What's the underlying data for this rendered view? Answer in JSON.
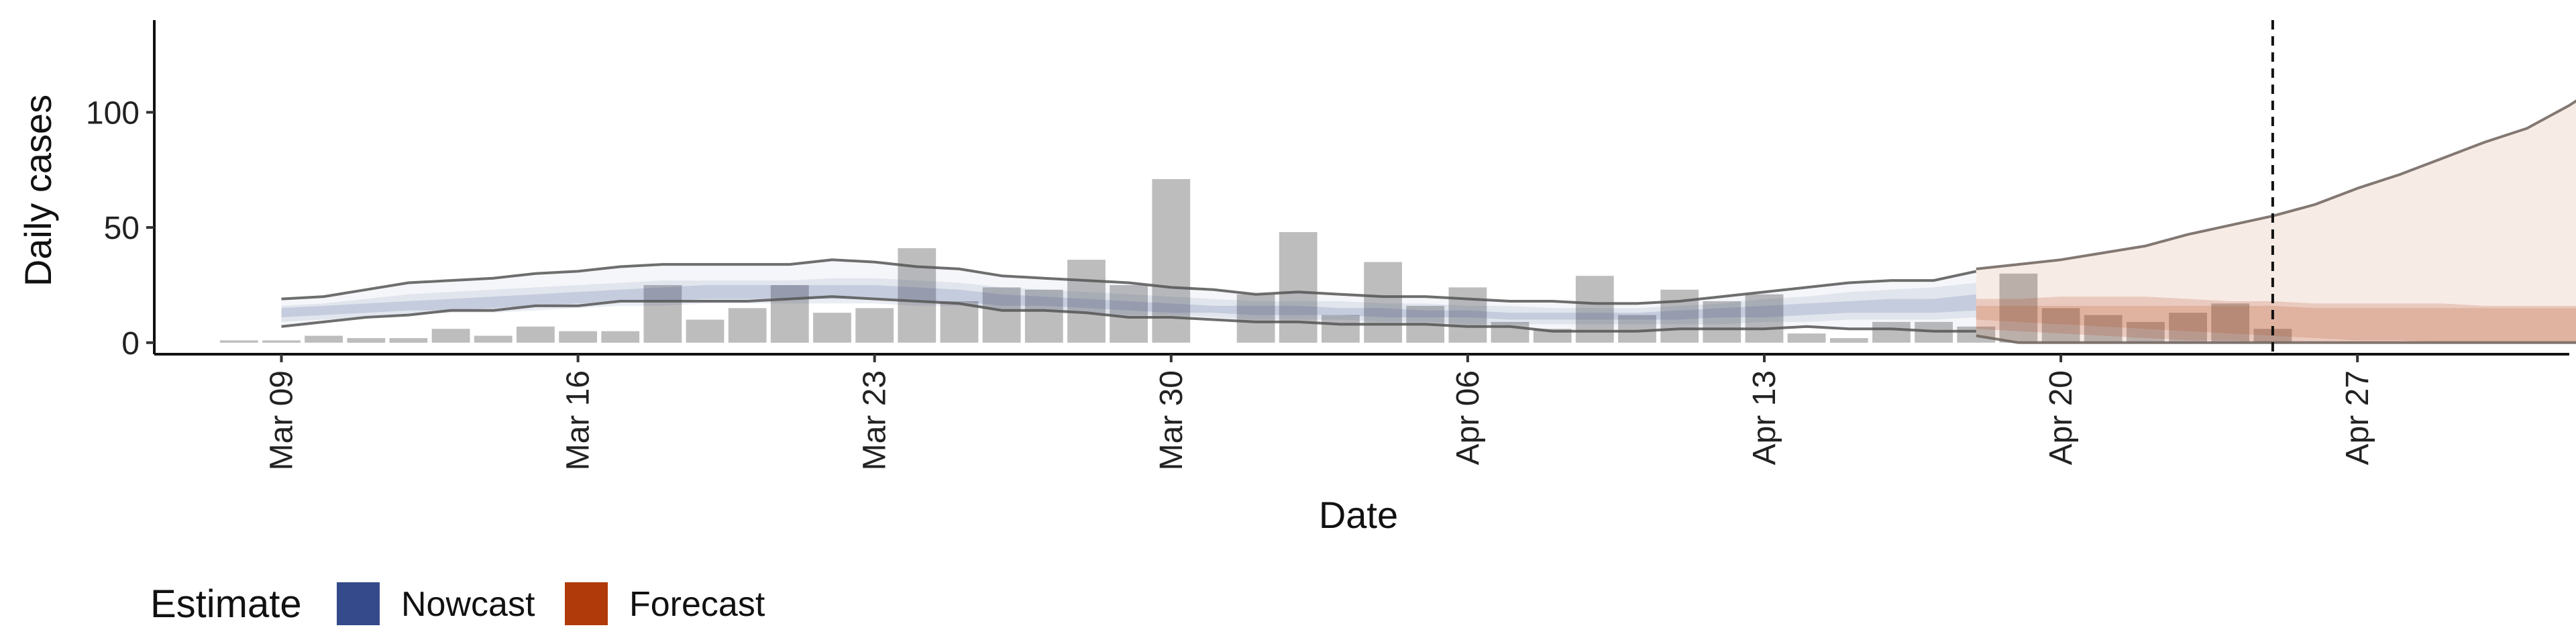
{
  "chart_data": {
    "type": "bar",
    "xlabel": "Date",
    "ylabel": "Daily cases",
    "x_domain": [
      "2020-03-06",
      "2020-05-02"
    ],
    "ylim": [
      -5,
      140
    ],
    "x_ticks": [
      {
        "date": "2020-03-09",
        "label": "Mar 09"
      },
      {
        "date": "2020-03-16",
        "label": "Mar 16"
      },
      {
        "date": "2020-03-23",
        "label": "Mar 23"
      },
      {
        "date": "2020-03-30",
        "label": "Mar 30"
      },
      {
        "date": "2020-04-06",
        "label": "Apr 06"
      },
      {
        "date": "2020-04-13",
        "label": "Apr 13"
      },
      {
        "date": "2020-04-20",
        "label": "Apr 20"
      },
      {
        "date": "2020-04-27",
        "label": "Apr 27"
      }
    ],
    "y_ticks": [
      0,
      50,
      100
    ],
    "forecast_date": "2020-04-25",
    "legend": {
      "title": "Estimate",
      "placement": "bottom-left",
      "items": [
        {
          "label": "Nowcast",
          "color": "#354A8A"
        },
        {
          "label": "Forecast",
          "color": "#B03A09"
        }
      ]
    },
    "colors": {
      "bars": "#BDBDBD",
      "nowcast": "#354A8A",
      "forecast": "#B03A09",
      "bound_line": "#555555"
    },
    "observed_cases": {
      "start_date": "2020-03-08",
      "values": [
        1,
        1,
        3,
        2,
        2,
        6,
        3,
        7,
        5,
        5,
        25,
        10,
        15,
        25,
        13,
        15,
        41,
        18,
        24,
        23,
        36,
        25,
        71,
        0,
        21,
        48,
        12,
        35,
        16,
        24,
        9,
        6,
        29,
        12,
        23,
        18,
        21,
        4,
        2,
        9,
        9,
        7,
        30,
        15,
        12,
        9,
        13,
        17,
        6
      ]
    },
    "series": [
      {
        "name": "Nowcast",
        "start_date": "2020-03-09",
        "upper": [
          19,
          20,
          23,
          26,
          27,
          28,
          30,
          31,
          33,
          34,
          34,
          34,
          34,
          36,
          35,
          33,
          32,
          29,
          28,
          27,
          26,
          24,
          23,
          21,
          22,
          21,
          20,
          20,
          19,
          18,
          18,
          17,
          17,
          18,
          20,
          22,
          24,
          26,
          27,
          27,
          31
        ],
        "outer_upper": [
          16,
          17,
          19,
          21,
          22,
          23,
          24,
          25,
          26,
          27,
          27,
          27,
          27,
          28,
          28,
          27,
          26,
          24,
          23,
          22,
          21,
          20,
          19,
          18,
          18,
          18,
          17,
          17,
          16,
          16,
          15,
          15,
          15,
          16,
          17,
          19,
          20,
          22,
          23,
          24,
          26
        ],
        "inner_upper": [
          15,
          16,
          17,
          18,
          19,
          20,
          21,
          22,
          23,
          24,
          25,
          25,
          25,
          25,
          25,
          24,
          23,
          21,
          20,
          19,
          18,
          17,
          16,
          16,
          16,
          15,
          15,
          14,
          14,
          13,
          13,
          13,
          13,
          14,
          15,
          16,
          17,
          18,
          19,
          19,
          21
        ],
        "median": [
          13,
          14,
          15,
          16,
          17,
          17,
          18,
          19,
          20,
          21,
          21,
          21,
          22,
          22,
          22,
          21,
          20,
          19,
          18,
          17,
          16,
          15,
          15,
          14,
          14,
          14,
          13,
          13,
          12,
          12,
          12,
          12,
          12,
          12,
          13,
          14,
          15,
          15,
          16,
          16,
          18
        ],
        "inner_lower": [
          11,
          12,
          13,
          14,
          14,
          15,
          16,
          17,
          18,
          18,
          19,
          19,
          19,
          19,
          19,
          18,
          18,
          16,
          16,
          15,
          14,
          13,
          13,
          12,
          12,
          12,
          11,
          11,
          11,
          10,
          10,
          10,
          10,
          10,
          11,
          11,
          12,
          13,
          13,
          13,
          14
        ],
        "outer_lower": [
          9,
          10,
          11,
          12,
          13,
          13,
          14,
          15,
          16,
          16,
          17,
          17,
          17,
          17,
          17,
          16,
          16,
          14,
          14,
          13,
          12,
          12,
          11,
          10,
          10,
          10,
          9,
          9,
          8,
          8,
          8,
          8,
          8,
          8,
          8,
          9,
          9,
          10,
          10,
          10,
          11
        ],
        "lower": [
          7,
          9,
          11,
          12,
          14,
          14,
          16,
          16,
          18,
          18,
          18,
          18,
          19,
          20,
          19,
          18,
          17,
          14,
          14,
          13,
          11,
          11,
          10,
          9,
          9,
          8,
          8,
          8,
          7,
          7,
          5,
          5,
          5,
          6,
          6,
          6,
          7,
          6,
          6,
          5,
          5
        ]
      },
      {
        "name": "Forecast",
        "start_date": "2020-04-18",
        "upper": [
          32,
          34,
          36,
          39,
          42,
          47,
          51,
          55,
          60,
          67,
          73,
          80,
          87,
          93,
          103,
          115,
          127,
          134
        ],
        "outer_upper": [
          19,
          19,
          20,
          20,
          20,
          19,
          18,
          18,
          17,
          17,
          17,
          17,
          16,
          16,
          16,
          16,
          16,
          16
        ],
        "inner_upper": [
          16,
          16,
          16,
          16,
          16,
          16,
          16,
          16,
          15,
          15,
          15,
          15,
          15,
          15,
          15,
          15,
          15,
          15
        ],
        "median": [
          13,
          12,
          12,
          11,
          10,
          9,
          8,
          7,
          6,
          5,
          4,
          3,
          2,
          2,
          1,
          1,
          1,
          1
        ],
        "inner_lower": [
          10,
          9,
          8,
          7,
          6,
          5,
          4,
          3,
          2,
          1,
          1,
          0,
          0,
          0,
          0,
          0,
          0,
          0
        ],
        "outer_lower": [
          6,
          5,
          4,
          3,
          2,
          1,
          1,
          0,
          0,
          0,
          0,
          0,
          0,
          0,
          0,
          0,
          0,
          0
        ],
        "lower": [
          3,
          0,
          0,
          0,
          0,
          0,
          0,
          0,
          0,
          0,
          0,
          0,
          0,
          0,
          0,
          0,
          0,
          0
        ]
      }
    ]
  }
}
